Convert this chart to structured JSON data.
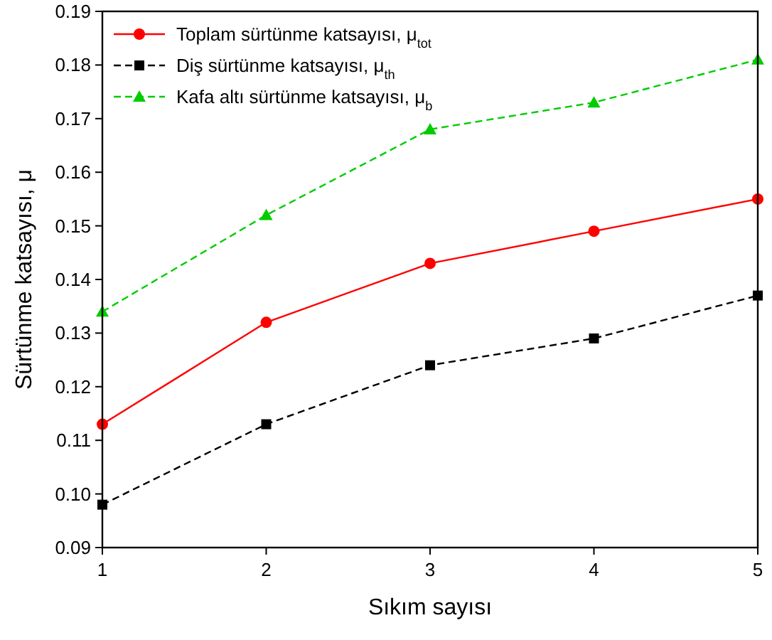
{
  "chart_data": {
    "type": "line",
    "xlabel": "Sıkım sayısı",
    "ylabel": "Sürtünme katsayısı, μ",
    "x": [
      1,
      2,
      3,
      4,
      5
    ],
    "xlim": [
      1,
      5
    ],
    "xticks": [
      1,
      2,
      3,
      4,
      5
    ],
    "ylim": [
      0.09,
      0.19
    ],
    "yticks": [
      {
        "value": 0.09,
        "label": "0.09"
      },
      {
        "value": 0.1,
        "label": "0.10"
      },
      {
        "value": 0.11,
        "label": "0.11"
      },
      {
        "value": 0.12,
        "label": "0.12"
      },
      {
        "value": 0.13,
        "label": "0.13"
      },
      {
        "value": 0.14,
        "label": "0.14"
      },
      {
        "value": 0.15,
        "label": "0.15"
      },
      {
        "value": 0.16,
        "label": "0.16"
      },
      {
        "value": 0.17,
        "label": "0.17"
      },
      {
        "value": 0.18,
        "label": "0.18"
      },
      {
        "value": 0.19,
        "label": "0.19"
      }
    ],
    "legend": "top left",
    "grid": false,
    "series": [
      {
        "name": "Toplam sürtünme katsayısı, μ$_{tot}$",
        "color": "#ff0000",
        "marker": "circle",
        "line_style": "solid",
        "values": [
          0.113,
          0.132,
          0.143,
          0.149,
          0.155
        ]
      },
      {
        "name": "Diş sürtünme katsayısı, μ$_{th}$",
        "color": "#000000",
        "marker": "square",
        "line_style": "dashed",
        "values": [
          0.098,
          0.113,
          0.124,
          0.129,
          0.137
        ]
      },
      {
        "name": "Kafa altı sürtünme katsayısı, μ$_{b}$",
        "color": "#00cc00",
        "marker": "triangle",
        "line_style": "dashed",
        "values": [
          0.134,
          0.152,
          0.168,
          0.173,
          0.181
        ]
      }
    ]
  }
}
